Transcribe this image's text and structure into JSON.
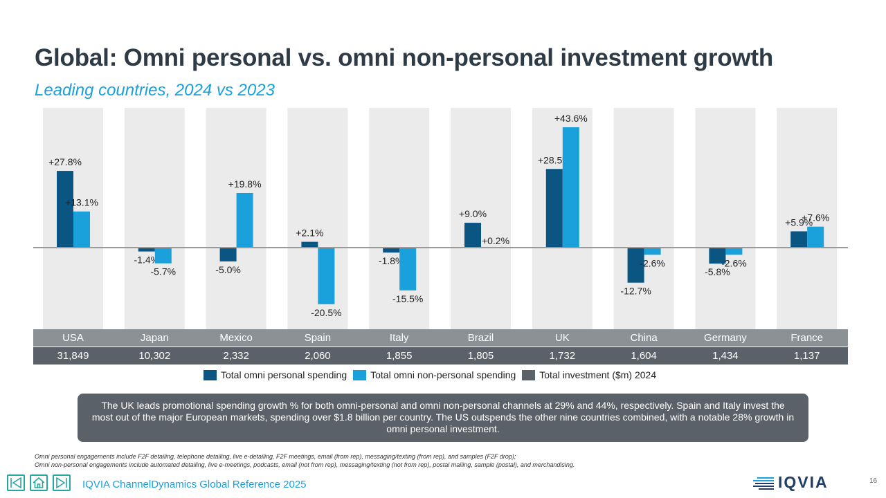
{
  "header": {
    "title": "Global: Omni personal vs. omni non-personal investment growth",
    "subtitle": "Leading countries, 2024 vs 2023"
  },
  "chart_data": {
    "type": "bar",
    "categories": [
      "USA",
      "Japan",
      "Mexico",
      "Spain",
      "Italy",
      "Brazil",
      "UK",
      "China",
      "Germany",
      "France"
    ],
    "series": [
      {
        "name": "Total omni personal spending",
        "color": "#0b5583",
        "values": [
          27.8,
          -1.4,
          -5.0,
          2.1,
          -1.8,
          9.0,
          28.5,
          -12.7,
          -5.8,
          5.9
        ],
        "labels": [
          "+27.8%",
          "-1.4%",
          "-5.0%",
          "+2.1%",
          "-1.8%",
          "+9.0%",
          "+28.5%",
          "-12.7%",
          "-5.8%",
          "+5.9%"
        ]
      },
      {
        "name": "Total omni non-personal spending",
        "color": "#1aa0db",
        "values": [
          13.1,
          -5.7,
          19.8,
          -20.5,
          -15.5,
          0.2,
          43.6,
          -2.6,
          -2.6,
          7.6
        ],
        "labels": [
          "+13.1%",
          "-5.7%",
          "+19.8%",
          "-20.5%",
          "-15.5%",
          "+0.2%",
          "+43.6%",
          "-2.6%",
          "-2.6%",
          "+7.6%"
        ]
      }
    ],
    "total_investment": {
      "name": "Total investment  ($m) 2024",
      "color": "#5a6168",
      "values": [
        "31,849",
        "10,302",
        "2,332",
        "2,060",
        "1,855",
        "1,805",
        "1,732",
        "1,604",
        "1,434",
        "1,137"
      ]
    },
    "ylim": [
      -30,
      50
    ],
    "grid": false,
    "legend_position": "bottom"
  },
  "callout": {
    "text": "The UK leads promotional spending growth % for both omni-personal and omni non-personal channels at 29% and 44%, respectively. Spain and Italy invest the most out of the major European markets, spending  over $1.8 billion per country. The US outspends the other nine countries combined, with a notable 28% growth in omni personal investment."
  },
  "footnotes": {
    "line1": "Omni personal engagements include F2F detailing, telephone detailing, live e-detailing, F2F meetings, email (from rep), messaging/texting (from rep), and samples (F2F drop);",
    "line2": "Omni non-personal engagements include automated detailing, live e-meetings, podcasts, email (not from rep), messaging/texting (not from rep), postal mailing, sample (postal), and merchandising."
  },
  "footer": {
    "source": "IQVIA ChannelDynamics Global Reference 2025",
    "page_number": "16",
    "logo_text": "IQVIA",
    "nav_icons": [
      "back-icon",
      "home-icon",
      "forward-icon"
    ],
    "nav_color": "#27a6a0"
  }
}
